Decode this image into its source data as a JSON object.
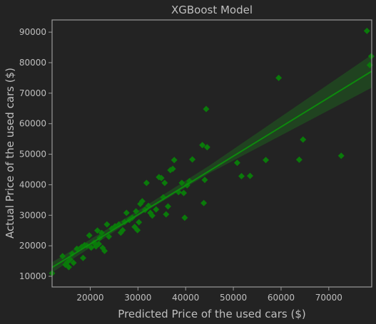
{
  "chart_data": {
    "type": "scatter",
    "title": "XGBoost Model",
    "xlabel": "Predicted Price of the used cars ($)",
    "ylabel": "Actual Price of the used cars ($)",
    "xlim": [
      12000,
      79000
    ],
    "ylim": [
      6500,
      94000
    ],
    "x_ticks": [
      20000,
      30000,
      40000,
      50000,
      60000,
      70000
    ],
    "y_ticks": [
      10000,
      20000,
      30000,
      40000,
      50000,
      60000,
      70000,
      80000,
      90000
    ],
    "x_tick_labels": [
      "20000",
      "30000",
      "40000",
      "50000",
      "60000",
      "70000"
    ],
    "y_tick_labels": [
      "10000",
      "20000",
      "30000",
      "40000",
      "50000",
      "60000",
      "70000",
      "80000",
      "90000"
    ],
    "grid": false,
    "marker": "diamond",
    "point_color": "#0a7a0a",
    "fit_line_color": "#0d8a0d",
    "confidence_band_color": "#1d6b1d",
    "fit_line": {
      "x": [
        12000,
        79000
      ],
      "y": [
        12900,
        77200
      ]
    },
    "confidence_band": {
      "x": [
        12000,
        30000,
        45000,
        79000
      ],
      "upper": [
        14600,
        31500,
        46300,
        82600
      ],
      "lower": [
        11200,
        29700,
        43800,
        71800
      ]
    },
    "points": [
      [
        12000,
        11000
      ],
      [
        14200,
        16600
      ],
      [
        14800,
        13800
      ],
      [
        15200,
        14600
      ],
      [
        15500,
        13000
      ],
      [
        15800,
        15500
      ],
      [
        16200,
        17400
      ],
      [
        16500,
        14400
      ],
      [
        17200,
        19000
      ],
      [
        18200,
        19600
      ],
      [
        18500,
        16000
      ],
      [
        18800,
        20200
      ],
      [
        19300,
        20000
      ],
      [
        19800,
        23400
      ],
      [
        20200,
        19400
      ],
      [
        20800,
        21000
      ],
      [
        21200,
        19800
      ],
      [
        21500,
        25000
      ],
      [
        21800,
        20600
      ],
      [
        22000,
        22600
      ],
      [
        22400,
        24200
      ],
      [
        22600,
        19300
      ],
      [
        23000,
        18300
      ],
      [
        23500,
        27000
      ],
      [
        23900,
        23000
      ],
      [
        24500,
        25600
      ],
      [
        25200,
        26400
      ],
      [
        26000,
        27000
      ],
      [
        26400,
        24300
      ],
      [
        26800,
        25100
      ],
      [
        27200,
        27800
      ],
      [
        27600,
        30800
      ],
      [
        28200,
        28500
      ],
      [
        28800,
        29200
      ],
      [
        29300,
        26200
      ],
      [
        29600,
        31300
      ],
      [
        29900,
        25100
      ],
      [
        30200,
        27700
      ],
      [
        30500,
        33700
      ],
      [
        30900,
        34600
      ],
      [
        31500,
        31800
      ],
      [
        31800,
        40600
      ],
      [
        32200,
        33100
      ],
      [
        32600,
        30800
      ],
      [
        33000,
        29900
      ],
      [
        33800,
        31900
      ],
      [
        34400,
        42500
      ],
      [
        34900,
        42200
      ],
      [
        35300,
        35900
      ],
      [
        35600,
        40600
      ],
      [
        35900,
        30300
      ],
      [
        36300,
        32900
      ],
      [
        36800,
        44800
      ],
      [
        37300,
        45200
      ],
      [
        37600,
        48100
      ],
      [
        38500,
        37600
      ],
      [
        39200,
        40600
      ],
      [
        39600,
        37300
      ],
      [
        39800,
        29200
      ],
      [
        40300,
        39800
      ],
      [
        40800,
        41200
      ],
      [
        41400,
        48300
      ],
      [
        43500,
        53000
      ],
      [
        43800,
        34000
      ],
      [
        44000,
        41600
      ],
      [
        44300,
        64800
      ],
      [
        44500,
        52300
      ],
      [
        50800,
        47200
      ],
      [
        51700,
        42800
      ],
      [
        53500,
        42900
      ],
      [
        56800,
        48100
      ],
      [
        59500,
        75000
      ],
      [
        63800,
        48200
      ],
      [
        64600,
        54800
      ],
      [
        72600,
        49500
      ],
      [
        78000,
        90400
      ],
      [
        78900,
        82100
      ],
      [
        78600,
        79200
      ]
    ]
  }
}
